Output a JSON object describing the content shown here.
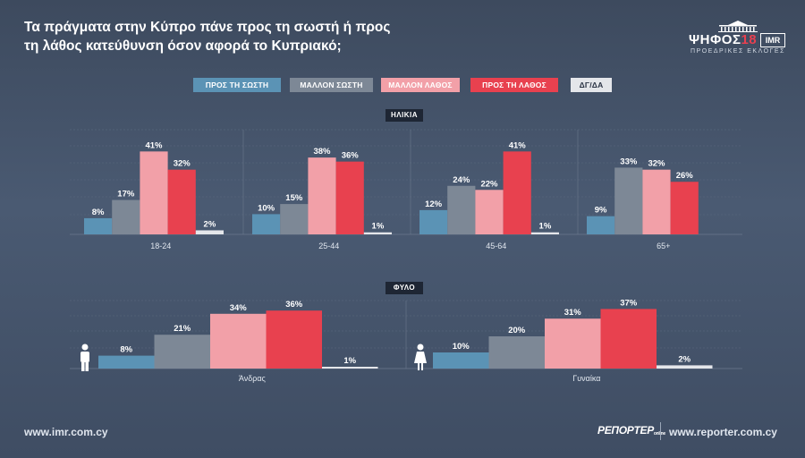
{
  "header": {
    "title_line1": "Τα πράγματα στην Κύπρο πάνε προς τη σωστή ή προς",
    "title_line2": "τη λάθος κατεύθυνση όσον αφορά το Κυπριακό;"
  },
  "logo": {
    "brand": "ΨΗΦΟΣ",
    "year": "18",
    "partner": "IMR",
    "subtitle": "ΠΡΟΕΔΡΙΚΕΣ ΕΚΛΟΓΕΣ"
  },
  "legend": [
    {
      "label": "ΠΡΟΣ ΤΗ ΣΩΣΤΗ",
      "color": "#5b93b5",
      "text_color": "#ffffff"
    },
    {
      "label": "ΜΑΛΛΟΝ ΣΩΣΤΗ",
      "color": "#7d8896",
      "text_color": "#ffffff"
    },
    {
      "label": "ΜΑΛΛΟΝ ΛΑΘΟΣ",
      "color": "#f2a0a8",
      "text_color": "#ffffff"
    },
    {
      "label": "ΠΡΟΣ ΤΗ ΛΑΘΟΣ",
      "color": "#e8414f",
      "text_color": "#ffffff"
    },
    {
      "label": "ΔΓ/ΔΑ",
      "color": "#e4e6ea",
      "text_color": "#2a3344"
    }
  ],
  "sections": {
    "age_label": "ΗΛΙΚΙΑ",
    "gender_label": "ΦΥΛΟ"
  },
  "chart_data": [
    {
      "type": "bar",
      "title": "ΗΛΙΚΙΑ",
      "categories": [
        "18-24",
        "25-44",
        "45-64",
        "65+"
      ],
      "series": [
        {
          "name": "ΠΡΟΣ ΤΗ ΣΩΣΤΗ",
          "values": [
            8,
            10,
            12,
            9
          ]
        },
        {
          "name": "ΜΑΛΛΟΝ ΣΩΣΤΗ",
          "values": [
            17,
            15,
            24,
            33
          ]
        },
        {
          "name": "ΜΑΛΛΟΝ ΛΑΘΟΣ",
          "values": [
            41,
            38,
            22,
            32
          ]
        },
        {
          "name": "ΠΡΟΣ ΤΗ ΛΑΘΟΣ",
          "values": [
            32,
            36,
            41,
            26
          ]
        },
        {
          "name": "ΔΓ/ΔΑ",
          "values": [
            2,
            1,
            1,
            null
          ]
        }
      ],
      "value_suffix": "%",
      "ylim": [
        0,
        45
      ],
      "grid": true
    },
    {
      "type": "bar",
      "title": "ΦΥΛΟ",
      "categories": [
        "Άνδρας",
        "Γυναίκα"
      ],
      "series": [
        {
          "name": "ΠΡΟΣ ΤΗ ΣΩΣΤΗ",
          "values": [
            8,
            10
          ]
        },
        {
          "name": "ΜΑΛΛΟΝ ΣΩΣΤΗ",
          "values": [
            21,
            20
          ]
        },
        {
          "name": "ΜΑΛΛΟΝ ΛΑΘΟΣ",
          "values": [
            34,
            31
          ]
        },
        {
          "name": "ΠΡΟΣ ΤΗ ΛΑΘΟΣ",
          "values": [
            36,
            37
          ]
        },
        {
          "name": "ΔΓ/ΔΑ",
          "values": [
            1,
            2
          ]
        }
      ],
      "value_suffix": "%",
      "ylim": [
        0,
        45
      ],
      "grid": true
    }
  ],
  "icons": {
    "male": "male-person-icon",
    "female": "female-person-icon"
  },
  "footer": {
    "left_url": "www.imr.com.cy",
    "brand": "ΡΕΠΟΡΤΕΡ",
    "brand_suffix": "online",
    "right_url": "www.reporter.com.cy"
  }
}
